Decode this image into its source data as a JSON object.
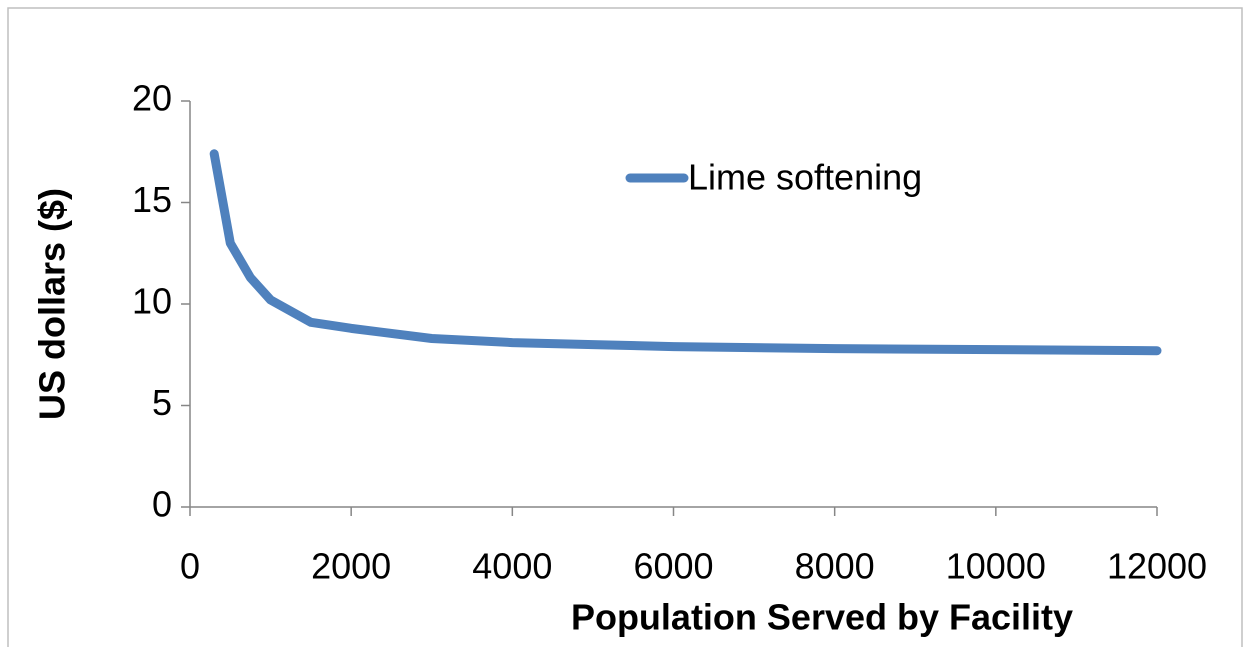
{
  "chart_data": {
    "type": "line",
    "x_label": "Population Served by Facility",
    "y_label": "US dollars ($)",
    "x": [
      300,
      500,
      750,
      1000,
      1500,
      2000,
      3000,
      4000,
      5000,
      6000,
      8000,
      10000,
      12000
    ],
    "series": [
      {
        "name": "Lime softening",
        "color": "#4f81bd",
        "values": [
          17.4,
          13.0,
          11.3,
          10.2,
          9.1,
          8.8,
          8.3,
          8.1,
          8.0,
          7.9,
          7.8,
          7.75,
          7.7
        ]
      }
    ],
    "xlim": [
      0,
      12000
    ],
    "xticks": [
      0,
      2000,
      4000,
      6000,
      8000,
      10000,
      12000
    ],
    "ylim": [
      0,
      20
    ],
    "yticks": [
      0,
      5,
      10,
      15,
      20
    ],
    "grid": false,
    "legend": "top-right"
  }
}
